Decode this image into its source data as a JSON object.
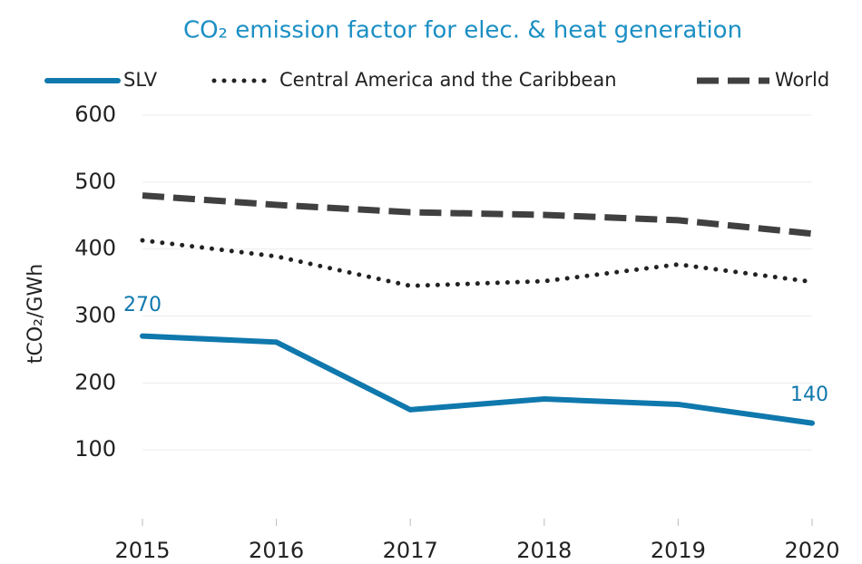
{
  "chart_data": {
    "type": "line",
    "title": "CO₂ emission factor for elec. & heat generation",
    "y_label": "tCO₂/GWh",
    "x": [
      2015,
      2016,
      2017,
      2018,
      2019,
      2020
    ],
    "xlim": [
      2015,
      2020
    ],
    "xticks": [
      2015,
      2016,
      2017,
      2018,
      2019,
      2020
    ],
    "ylim": [
      0,
      600
    ],
    "yticks": [
      100,
      200,
      300,
      400,
      500,
      600
    ],
    "grid": true,
    "legend": "top",
    "series": [
      {
        "name": "SLV",
        "color": "#0f78ad",
        "style": "solid",
        "values": [
          270,
          261,
          160,
          176,
          168,
          140
        ]
      },
      {
        "name": "Central America and the Caribbean",
        "color": "#222222",
        "style": "dotted",
        "values": [
          413,
          389,
          345,
          352,
          377,
          351
        ]
      },
      {
        "name": "World",
        "color": "#404040",
        "style": "dashed",
        "values": [
          480,
          466,
          455,
          451,
          443,
          423
        ]
      }
    ]
  }
}
